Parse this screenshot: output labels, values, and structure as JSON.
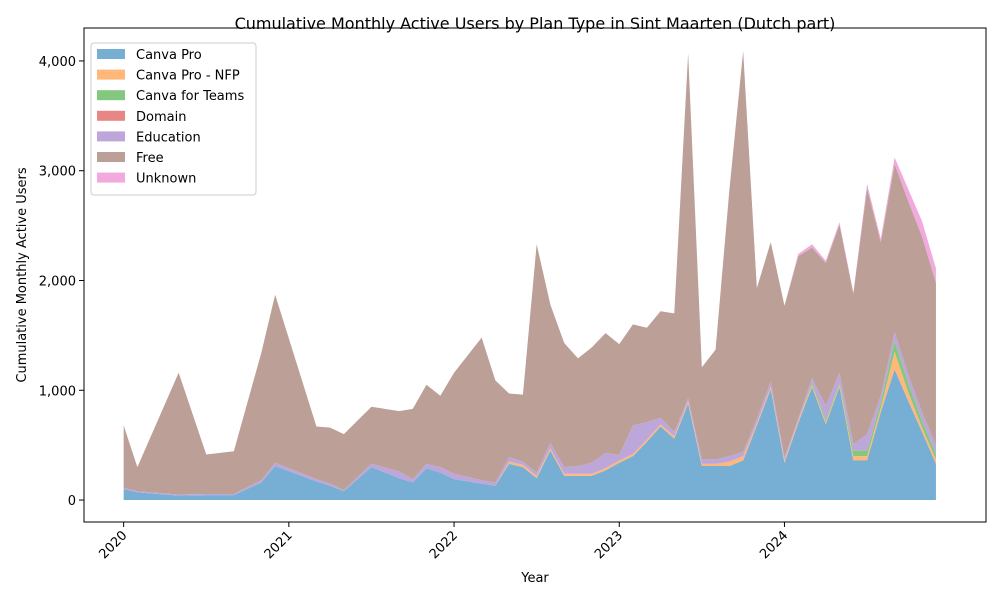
{
  "chart_data": {
    "type": "area",
    "stacked": true,
    "title": "Cumulative Monthly Active Users by Plan Type in Sint Maarten (Dutch part)",
    "xlabel": "Year",
    "ylabel": "Cumulative Monthly Active Users",
    "xlim": [
      2019.76,
      2025.22
    ],
    "ylim": [
      -200,
      4300
    ],
    "x_ticks": [
      {
        "value": 2020,
        "label": "2020"
      },
      {
        "value": 2021,
        "label": "2021"
      },
      {
        "value": 2022,
        "label": "2022"
      },
      {
        "value": 2023,
        "label": "2023"
      },
      {
        "value": 2024,
        "label": "2024"
      }
    ],
    "y_ticks": [
      {
        "value": 0,
        "label": "0"
      },
      {
        "value": 1000,
        "label": "1,000"
      },
      {
        "value": 2000,
        "label": "2,000"
      },
      {
        "value": 3000,
        "label": "3,000"
      },
      {
        "value": 4000,
        "label": "4,000"
      }
    ],
    "legend_position": "upper-left",
    "x": [
      2020.0,
      2020.083,
      2020.333,
      2020.5,
      2020.667,
      2020.833,
      2020.917,
      2021.167,
      2021.25,
      2021.333,
      2021.5,
      2021.667,
      2021.75,
      2021.833,
      2021.917,
      2022.0,
      2022.167,
      2022.25,
      2022.333,
      2022.417,
      2022.5,
      2022.583,
      2022.667,
      2022.75,
      2022.833,
      2022.917,
      2023.0,
      2023.083,
      2023.167,
      2023.25,
      2023.333,
      2023.417,
      2023.5,
      2023.583,
      2023.667,
      2023.75,
      2023.833,
      2023.917,
      2024.0,
      2024.083,
      2024.167,
      2024.25,
      2024.333,
      2024.417,
      2024.5,
      2024.583,
      2024.667,
      2024.75,
      2024.833,
      2024.917
    ],
    "series": [
      {
        "name": "Canva Pro",
        "color": "#77aed4",
        "values": [
          100,
          70,
          40,
          45,
          45,
          160,
          310,
          170,
          130,
          80,
          300,
          200,
          160,
          290,
          250,
          190,
          150,
          130,
          330,
          300,
          200,
          450,
          220,
          220,
          220,
          270,
          340,
          400,
          530,
          670,
          560,
          880,
          310,
          310,
          310,
          360,
          680,
          1010,
          340,
          700,
          1030,
          690,
          1030,
          360,
          360,
          800,
          1190,
          900,
          620,
          330
        ]
      },
      {
        "name": "Canva Pro - NFP",
        "color": "#ffb87a",
        "values": [
          0,
          0,
          0,
          0,
          0,
          0,
          0,
          0,
          0,
          0,
          0,
          0,
          0,
          0,
          0,
          0,
          0,
          0,
          20,
          20,
          20,
          20,
          20,
          20,
          20,
          20,
          20,
          20,
          20,
          20,
          20,
          20,
          20,
          20,
          40,
          40,
          20,
          20,
          20,
          20,
          20,
          20,
          20,
          40,
          40,
          40,
          160,
          80,
          40,
          40
        ]
      },
      {
        "name": "Canva for Teams",
        "color": "#84c77f",
        "values": [
          0,
          0,
          0,
          0,
          0,
          0,
          0,
          0,
          0,
          0,
          0,
          0,
          0,
          0,
          0,
          0,
          0,
          0,
          0,
          0,
          0,
          0,
          0,
          0,
          0,
          0,
          0,
          0,
          0,
          0,
          0,
          0,
          0,
          0,
          0,
          0,
          0,
          0,
          0,
          0,
          20,
          20,
          20,
          50,
          50,
          50,
          100,
          80,
          60,
          50
        ]
      },
      {
        "name": "Domain",
        "color": "#e88686",
        "values": [
          0,
          0,
          0,
          0,
          0,
          0,
          0,
          0,
          0,
          0,
          0,
          0,
          0,
          0,
          0,
          0,
          0,
          0,
          0,
          0,
          0,
          0,
          0,
          0,
          0,
          0,
          0,
          0,
          0,
          0,
          0,
          0,
          0,
          0,
          0,
          0,
          0,
          0,
          0,
          0,
          0,
          0,
          0,
          0,
          0,
          0,
          0,
          0,
          0,
          0
        ]
      },
      {
        "name": "Education",
        "color": "#bda6d9",
        "values": [
          10,
          10,
          10,
          10,
          10,
          20,
          30,
          20,
          20,
          10,
          30,
          60,
          30,
          40,
          50,
          50,
          30,
          30,
          40,
          30,
          30,
          50,
          60,
          70,
          100,
          140,
          50,
          260,
          160,
          60,
          40,
          30,
          40,
          40,
          50,
          40,
          40,
          50,
          30,
          20,
          40,
          130,
          90,
          60,
          150,
          60,
          80,
          80,
          80,
          80
        ]
      },
      {
        "name": "Free",
        "color": "#bc9f97",
        "values": [
          570,
          220,
          1110,
          360,
          390,
          1160,
          1530,
          480,
          510,
          510,
          520,
          550,
          640,
          720,
          650,
          920,
          1300,
          930,
          580,
          610,
          2080,
          1260,
          1130,
          980,
          1050,
          1090,
          1010,
          920,
          860,
          970,
          1080,
          3140,
          840,
          1000,
          2430,
          3650,
          1190,
          1270,
          1380,
          1480,
          1190,
          1300,
          1350,
          1370,
          2240,
          1400,
          1530,
          1580,
          1600,
          1480
        ]
      },
      {
        "name": "Unknown",
        "color": "#f1a9de",
        "values": [
          0,
          0,
          0,
          0,
          0,
          0,
          0,
          0,
          0,
          0,
          0,
          0,
          0,
          0,
          0,
          0,
          0,
          0,
          0,
          0,
          0,
          0,
          0,
          0,
          0,
          0,
          0,
          0,
          0,
          0,
          0,
          0,
          0,
          0,
          0,
          0,
          0,
          0,
          0,
          20,
          30,
          20,
          20,
          10,
          40,
          30,
          60,
          110,
          140,
          130
        ]
      }
    ]
  }
}
